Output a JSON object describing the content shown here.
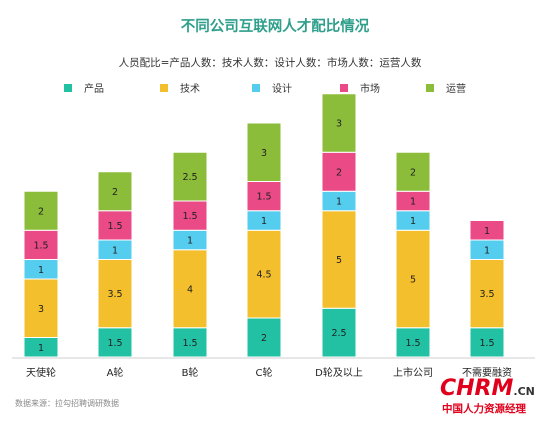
{
  "chart_data": {
    "type": "bar",
    "stacked": true,
    "title": "不同公司互联网人才配比情况",
    "subtitle": "人员配比=产品人数：技术人数：设计人数：市场人数：运营人数",
    "categories": [
      "天使轮",
      "A轮",
      "B轮",
      "C轮",
      "D轮及以上",
      "上市公司",
      "不需要融资"
    ],
    "series": [
      {
        "name": "产品",
        "color": "#23c1a4",
        "values": [
          1,
          1.5,
          1.5,
          2,
          2.5,
          1.5,
          1.5
        ]
      },
      {
        "name": "技术",
        "color": "#f4bf2c",
        "values": [
          3,
          3.5,
          4,
          4.5,
          5,
          5,
          3.5
        ]
      },
      {
        "name": "设计",
        "color": "#55cdee",
        "values": [
          1,
          1,
          1,
          1,
          1,
          1,
          1
        ]
      },
      {
        "name": "市场",
        "color": "#ea4a86",
        "values": [
          1.5,
          1.5,
          1.5,
          1.5,
          2,
          1,
          1
        ]
      },
      {
        "name": "运营",
        "color": "#8cbd3a",
        "values": [
          2,
          2,
          2.5,
          3,
          3,
          2,
          null
        ]
      }
    ],
    "legend_position": "top",
    "grid": false,
    "source": "数据来源：拉勾招聘调研数据"
  },
  "watermark": {
    "brand": "CHRM",
    "suffix": ".CN",
    "tagline": "中国人力资源经理"
  }
}
